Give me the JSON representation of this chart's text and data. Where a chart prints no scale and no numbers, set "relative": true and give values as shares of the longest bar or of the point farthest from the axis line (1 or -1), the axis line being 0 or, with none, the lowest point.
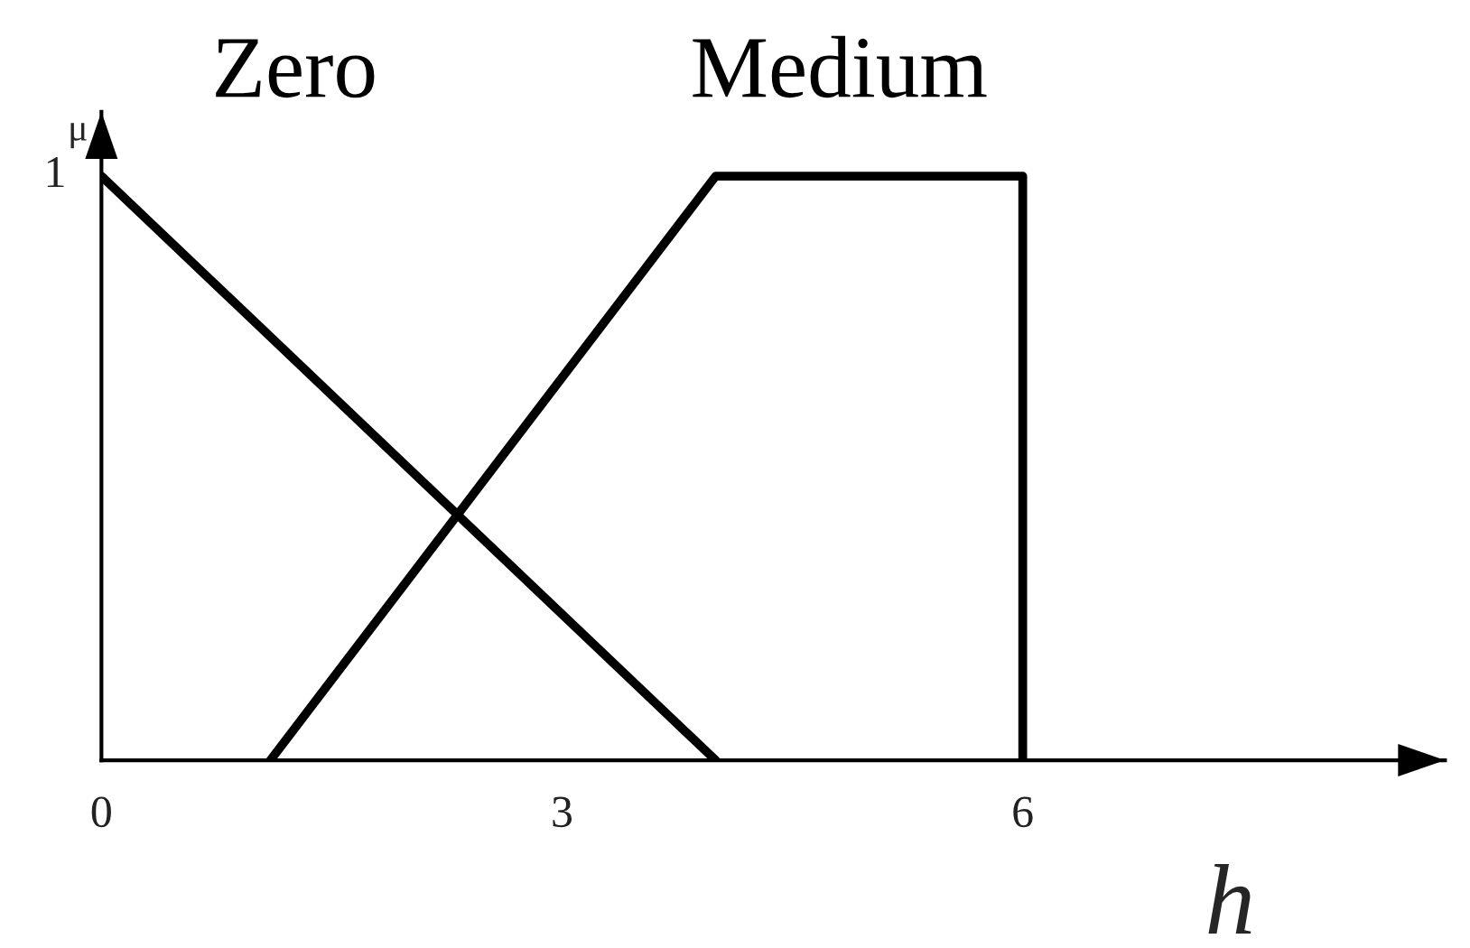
{
  "chart_data": {
    "type": "line",
    "xlabel": "h",
    "ylabel": "μ",
    "relative": true,
    "series": [
      {
        "name": "Zero",
        "color": "#000000",
        "x": [
          0,
          4
        ],
        "values": [
          1,
          0
        ]
      },
      {
        "name": "Medium",
        "color": "#000000",
        "x": [
          1.1,
          4,
          6,
          6
        ],
        "values": [
          0,
          1,
          1,
          0
        ]
      }
    ],
    "xlim": [
      0,
      8.75
    ],
    "xticks": [
      0,
      3,
      6
    ],
    "annotations": [
      {
        "text": "1",
        "x": 0,
        "y": 1
      }
    ],
    "grid": false,
    "line_style": "solid"
  }
}
